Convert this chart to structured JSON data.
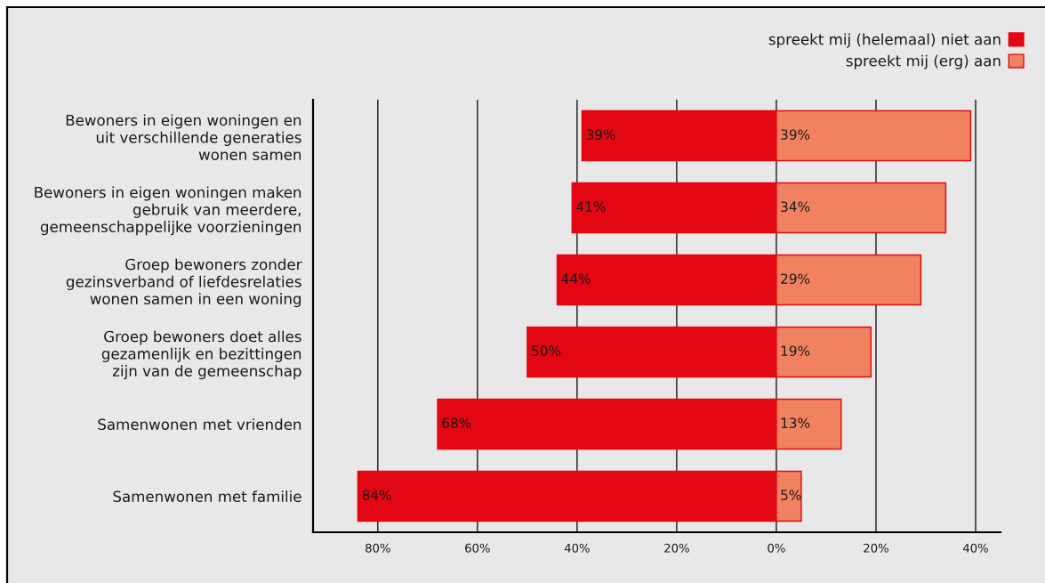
{
  "chart_data": {
    "type": "bar",
    "orientation": "horizontal",
    "categories": [
      "Bewoners in eigen woningen en\nuit verschillende generaties\nwonen samen",
      "Bewoners in eigen woningen maken\ngebruik van meerdere,\ngemeenschappelijke voorzieningen",
      "Groep bewoners zonder\ngezinsverband of liefdesrelaties\nwonen samen in een woning",
      "Groep bewoners doet alles\ngezamenlijk en bezittingen\nzijn van de gemeenschap",
      "Samenwonen met vrienden",
      "Samenwonen met familie"
    ],
    "series": [
      {
        "name": "spreekt mij (helemaal) niet aan",
        "color": "#e30613",
        "values": [
          39,
          41,
          44,
          50,
          68,
          84
        ],
        "base": [
          -39,
          -41,
          -44,
          -50,
          -68,
          -84
        ],
        "value_labels": [
          "39%",
          "41%",
          "44%",
          "50%",
          "68%",
          "84%"
        ]
      },
      {
        "name": "spreekt mij (erg) aan",
        "color": "#f08262",
        "values": [
          39,
          34,
          29,
          19,
          13,
          5
        ],
        "base": [
          0,
          0,
          0,
          0,
          0,
          0
        ],
        "value_labels": [
          "39%",
          "34%",
          "29%",
          "19%",
          "13%",
          "5%"
        ]
      }
    ],
    "xlim": [
      -93,
      45
    ],
    "xticks": [
      {
        "value": -80,
        "label": "80%"
      },
      {
        "value": -60,
        "label": "60%"
      },
      {
        "value": -40,
        "label": "40%"
      },
      {
        "value": -20,
        "label": "20%"
      },
      {
        "value": 0,
        "label": "0%"
      },
      {
        "value": 20,
        "label": "20%"
      },
      {
        "value": 40,
        "label": "40%"
      }
    ],
    "grid": "x",
    "legend": "top right"
  }
}
